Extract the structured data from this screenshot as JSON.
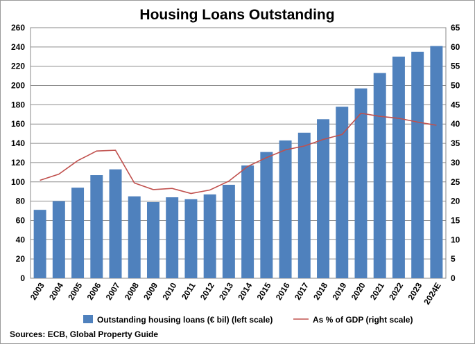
{
  "chart_data": {
    "type": "bar",
    "title": "Housing Loans Outstanding",
    "categories": [
      "2003",
      "2004",
      "2005",
      "2006",
      "2007",
      "2008",
      "2009",
      "2010",
      "2011",
      "2012",
      "2013",
      "2014",
      "2015",
      "2016",
      "2017",
      "2018",
      "2019",
      "2020",
      "2021",
      "2022",
      "2023",
      "2024E"
    ],
    "series": [
      {
        "name": "Outstanding housing loans (€ bil) (left scale)",
        "type": "bar",
        "axis": "left",
        "color": "#4f81bd",
        "values": [
          71,
          80,
          94,
          107,
          113,
          85,
          79,
          84,
          82,
          87,
          97,
          117,
          131,
          143,
          151,
          165,
          178,
          197,
          213,
          230,
          235,
          241
        ]
      },
      {
        "name": "As % of GDP (right scale)",
        "type": "line",
        "axis": "right",
        "color": "#c0504d",
        "values": [
          25.4,
          27.0,
          30.5,
          33.0,
          33.2,
          24.7,
          23.0,
          23.3,
          22.0,
          22.9,
          25.2,
          29.0,
          31.3,
          33.3,
          34.3,
          36.0,
          37.3,
          42.8,
          42.0,
          41.5,
          40.5,
          39.7
        ]
      }
    ],
    "y_left": {
      "min": 0,
      "max": 260,
      "step": 20,
      "ticks": [
        "0",
        "20",
        "40",
        "60",
        "80",
        "100",
        "120",
        "140",
        "160",
        "180",
        "200",
        "220",
        "240",
        "260"
      ]
    },
    "y_right": {
      "min": 0,
      "max": 65,
      "step": 5,
      "ticks": [
        "0",
        "5",
        "10",
        "15",
        "20",
        "25",
        "30",
        "35",
        "40",
        "45",
        "50",
        "55",
        "60",
        "65"
      ]
    },
    "grid": true,
    "legend": "bottom",
    "source": "Sources: ECB, Global Property Guide"
  }
}
